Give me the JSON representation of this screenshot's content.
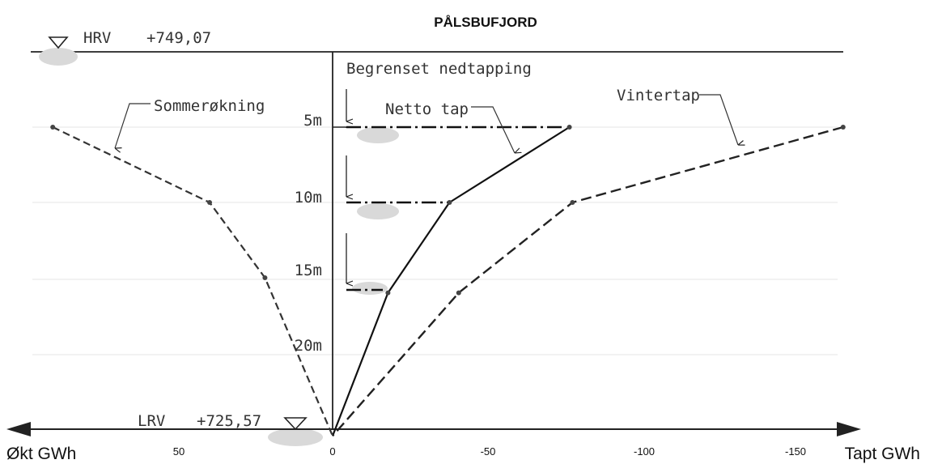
{
  "title": "PÅLSBUFJORD",
  "reservoir": {
    "hrv_label": "HRV",
    "hrv_value": "+749,07",
    "lrv_label": "LRV",
    "lrv_value": "+725,57"
  },
  "annotations": {
    "restricted_drawdown": "Begrenset nedtapping",
    "net_loss": "Netto tap",
    "winter_loss": "Vintertap",
    "summer_gain": "Sommerøkning"
  },
  "depth_labels": [
    "5m",
    "10m",
    "15m",
    "20m"
  ],
  "x_axis": {
    "left_label": "Økt GWh",
    "right_label": "Tapt GWh",
    "ticks": [
      "50",
      "0",
      "-50",
      "-100",
      "-150"
    ]
  },
  "chart_data": {
    "type": "line",
    "x_unit": "GWh",
    "y_unit": "m",
    "xlim": [
      105,
      -165
    ],
    "ylim": [
      25.5,
      0
    ],
    "series": [
      {
        "name": "Sommerøkning",
        "style": "dashed",
        "points": [
          [
            91,
            5
          ],
          [
            40,
            10
          ],
          [
            22,
            15
          ],
          [
            0,
            25.5
          ]
        ]
      },
      {
        "name": "Netto tap",
        "style": "solid",
        "points": [
          [
            -77,
            5
          ],
          [
            -38,
            10
          ],
          [
            -18,
            16
          ],
          [
            0,
            25.5
          ]
        ]
      },
      {
        "name": "Vintertap",
        "style": "dashed",
        "points": [
          [
            -166,
            5
          ],
          [
            -78,
            10
          ],
          [
            -41,
            16
          ],
          [
            0,
            25.5
          ]
        ]
      }
    ],
    "drawdown_levels_m": [
      5,
      10,
      16
    ]
  }
}
